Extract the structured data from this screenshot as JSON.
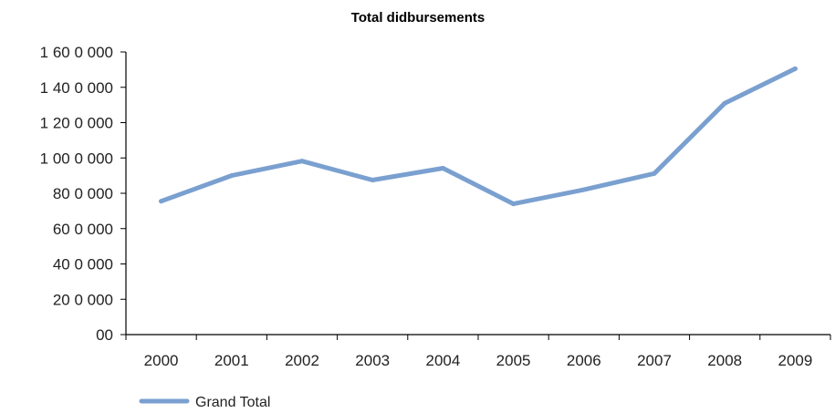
{
  "chart_data": {
    "type": "line",
    "title": "Total didbursements",
    "xlabel": "",
    "ylabel": "",
    "categories": [
      "2000",
      "2001",
      "2002",
      "2003",
      "2004",
      "2005",
      "2006",
      "2007",
      "2008",
      "2009"
    ],
    "series": [
      {
        "name": "Grand Total",
        "values": [
          755000,
          900000,
          982000,
          875000,
          942000,
          740000,
          820000,
          912000,
          1310000,
          1505000
        ],
        "color": "#7aa0d0"
      }
    ],
    "ylim": [
      0,
      1600000
    ],
    "y_ticks": [
      {
        "value": 0,
        "label": "00"
      },
      {
        "value": 200000,
        "label": "20 0 000"
      },
      {
        "value": 400000,
        "label": "40 0 000"
      },
      {
        "value": 600000,
        "label": "60 0 000"
      },
      {
        "value": 800000,
        "label": "80 0 000"
      },
      {
        "value": 1000000,
        "label": "1 00 0 000"
      },
      {
        "value": 1200000,
        "label": "1 20 0 000"
      },
      {
        "value": 1400000,
        "label": "1 40 0 000"
      },
      {
        "value": 1600000,
        "label": "1 60 0 000"
      }
    ],
    "grid": false,
    "legend_position": "bottom-left",
    "colors": {
      "axis": "#000000",
      "series": "#7aa0d0",
      "text": "#222222"
    }
  }
}
